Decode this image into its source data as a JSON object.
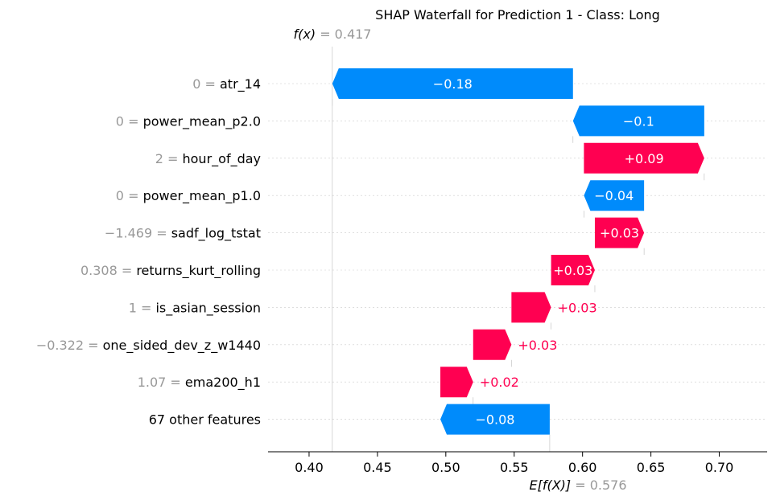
{
  "chart_data": {
    "type": "waterfall",
    "title": "SHAP Waterfall for Prediction 1 - Class: Long",
    "fx_label": "f(x)",
    "fx_value": 0.417,
    "fx_text": "= 0.417",
    "efx_label": "E[f(X)]",
    "efx_value": 0.576,
    "efx_text": "= 0.576",
    "xlim": [
      0.37,
      0.735
    ],
    "x_ticks": [
      0.4,
      0.45,
      0.5,
      0.55,
      0.6,
      0.65,
      0.7
    ],
    "x_tick_labels": [
      "0.40",
      "0.45",
      "0.50",
      "0.55",
      "0.60",
      "0.65",
      "0.70"
    ],
    "positive_color": "#ff0051",
    "negative_color": "#008bfb",
    "features": [
      {
        "value": "0",
        "name": "atr_14",
        "start": 0.593,
        "end": 0.417,
        "label": "−0.18"
      },
      {
        "value": "0",
        "name": "power_mean_p2.0",
        "start": 0.689,
        "end": 0.593,
        "label": "−0.1"
      },
      {
        "value": "2",
        "name": "hour_of_day",
        "start": 0.601,
        "end": 0.689,
        "label": "+0.09"
      },
      {
        "value": "0",
        "name": "power_mean_p1.0",
        "start": 0.645,
        "end": 0.601,
        "label": "−0.04"
      },
      {
        "value": "−1.469",
        "name": "sadf_log_tstat",
        "start": 0.609,
        "end": 0.645,
        "label": "+0.03"
      },
      {
        "value": "0.308",
        "name": "returns_kurt_rolling",
        "start": 0.577,
        "end": 0.609,
        "label": "+0.03"
      },
      {
        "value": "1",
        "name": "is_asian_session",
        "start": 0.548,
        "end": 0.577,
        "label": "+0.03"
      },
      {
        "value": "−0.322",
        "name": "one_sided_dev_z_w1440",
        "start": 0.52,
        "end": 0.548,
        "label": "+0.03"
      },
      {
        "value": "1.07",
        "name": "ema200_h1",
        "start": 0.496,
        "end": 0.52,
        "label": "+0.02"
      },
      {
        "value": "",
        "name": "67 other features",
        "start": 0.576,
        "end": 0.496,
        "label": "−0.08"
      }
    ]
  }
}
